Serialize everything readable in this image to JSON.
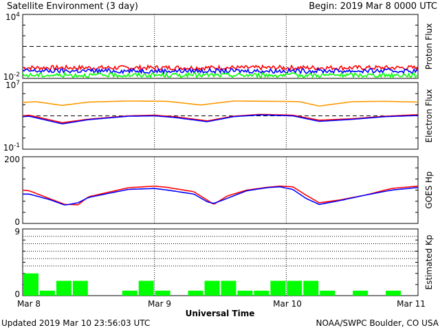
{
  "header": {
    "title": "Satellite Environment (3 day)",
    "begin": "Begin:  2019 Mar 8 0000 UTC"
  },
  "footer": {
    "updated": "Updated 2019 Mar 10 23:56:03 UTC",
    "credit": "NOAA/SWPC Boulder, CO USA"
  },
  "colors": {
    "red": "#ff0000",
    "blue": "#0000ff",
    "green": "#00ff00",
    "orange": "#ff9900",
    "frame": "#000000"
  },
  "chart_data": [
    {
      "type": "line",
      "ylabel": "Proton Flux",
      "yscale": "log",
      "ylim": [
        0.01,
        10000
      ],
      "ytick_labels": [
        "10^4",
        "10^-2"
      ],
      "threshold": 10,
      "x_days": [
        0,
        3
      ],
      "series": [
        {
          "color": "#ff0000",
          "level": 0.1,
          "noise": 0.07
        },
        {
          "color": "#0000ff",
          "level": 0.05,
          "noise": 0.07
        },
        {
          "color": "#00ff00",
          "level": 0.02,
          "noise": 0.07
        }
      ]
    },
    {
      "type": "line",
      "ylabel": "Electron Flux",
      "yscale": "log",
      "ylim": [
        0.1,
        10000000
      ],
      "ytick_labels": [
        "10^7",
        "10^-1"
      ],
      "threshold": 1000,
      "series": [
        {
          "color": "#ff9900",
          "x": [
            0,
            0.1,
            0.3,
            0.5,
            0.8,
            1.1,
            1.35,
            1.6,
            1.9,
            2.1,
            2.25,
            2.5,
            2.75,
            3.0
          ],
          "y": [
            40000,
            50000,
            18000,
            45000,
            60000,
            55000,
            20000,
            60000,
            55000,
            50000,
            15000,
            50000,
            55000,
            45000
          ]
        },
        {
          "color": "#ff0000",
          "x": [
            0,
            0.05,
            0.3,
            0.5,
            0.8,
            1.0,
            1.15,
            1.4,
            1.6,
            1.8,
            2.05,
            2.25,
            2.5,
            2.75,
            3.0
          ],
          "y": [
            1000,
            1200,
            150,
            400,
            1000,
            1200,
            800,
            250,
            900,
            1500,
            1200,
            300,
            450,
            900,
            1400
          ]
        },
        {
          "color": "#0000ff",
          "x": [
            0,
            0.05,
            0.3,
            0.5,
            0.8,
            1.0,
            1.15,
            1.4,
            1.6,
            1.8,
            2.05,
            2.25,
            2.5,
            2.75,
            3.0
          ],
          "y": [
            800,
            900,
            110,
            350,
            900,
            1000,
            650,
            200,
            800,
            1300,
            1000,
            220,
            380,
            800,
            1100
          ]
        }
      ]
    },
    {
      "type": "line",
      "ylabel": "GOES Hp",
      "yscale": "linear",
      "ylim": [
        0,
        200
      ],
      "ytick_labels": [
        "200",
        "0"
      ],
      "series": [
        {
          "color": "#ff0000",
          "x": [
            0,
            0.05,
            0.2,
            0.32,
            0.42,
            0.5,
            0.8,
            1.0,
            1.1,
            1.3,
            1.4,
            1.45,
            1.55,
            1.7,
            1.85,
            1.95,
            2.05,
            2.15,
            2.25,
            2.4,
            2.6,
            2.8,
            3.0
          ],
          "y": [
            100,
            98,
            75,
            57,
            56,
            80,
            107,
            112,
            108,
            95,
            70,
            57,
            82,
            100,
            108,
            112,
            110,
            85,
            62,
            70,
            85,
            105,
            112
          ]
        },
        {
          "color": "#0000ff",
          "x": [
            0,
            0.05,
            0.2,
            0.32,
            0.42,
            0.5,
            0.8,
            1.0,
            1.1,
            1.3,
            1.4,
            1.45,
            1.55,
            1.7,
            1.85,
            1.95,
            2.05,
            2.15,
            2.25,
            2.4,
            2.6,
            2.8,
            3.0
          ],
          "y": [
            88,
            88,
            72,
            55,
            62,
            78,
            102,
            105,
            100,
            88,
            65,
            60,
            75,
            98,
            107,
            110,
            102,
            75,
            57,
            68,
            85,
            100,
            108
          ]
        }
      ]
    },
    {
      "type": "bar",
      "ylabel": "Estimated Kp",
      "ylim": [
        0,
        9
      ],
      "ytick_labels": [
        "9",
        "0"
      ],
      "gridlines": [
        4,
        5,
        6,
        7,
        8,
        9
      ],
      "bar_color": "#00ff00",
      "values": [
        3,
        0.67,
        2,
        2,
        0,
        0,
        0.67,
        2,
        0.67,
        0,
        0.67,
        2,
        2,
        0.67,
        0.67,
        2,
        2,
        2,
        0.67,
        0,
        0.67,
        0,
        0.67,
        0
      ]
    }
  ],
  "x_axis": {
    "tick_labels": [
      "Mar 8",
      "Mar 9",
      "Mar 10",
      "Mar 11"
    ],
    "title": "Universal Time"
  }
}
